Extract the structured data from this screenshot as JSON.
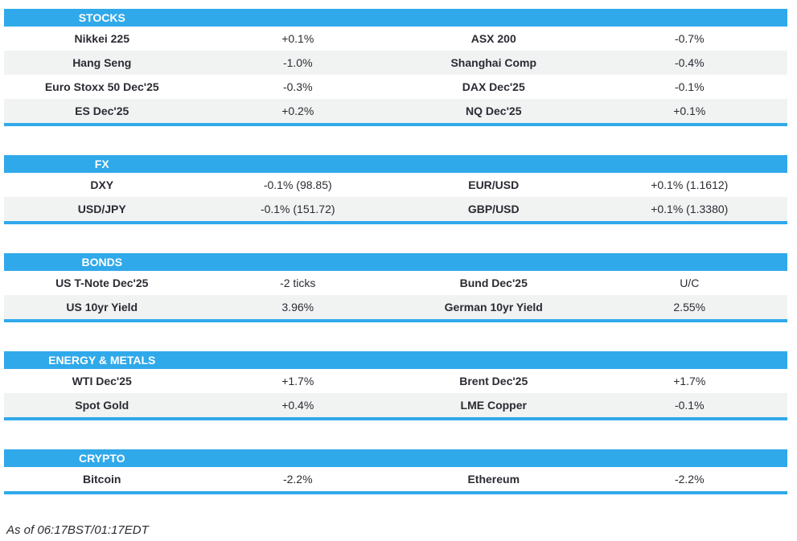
{
  "colors": {
    "accent_blue": "#30A9EA",
    "alt_row_gray": "#F1F2F2",
    "text_dark": "#2B2B33",
    "header_text": "#FFFFFF"
  },
  "sections": [
    {
      "title": "STOCKS",
      "rows": [
        [
          "Nikkei 225",
          "+0.1%",
          "ASX 200",
          "-0.7%"
        ],
        [
          "Hang Seng",
          "-1.0%",
          "Shanghai Comp",
          "-0.4%"
        ],
        [
          "Euro Stoxx 50 Dec'25",
          "-0.3%",
          "DAX Dec'25",
          "-0.1%"
        ],
        [
          "ES Dec'25",
          "+0.2%",
          "NQ Dec'25",
          "+0.1%"
        ]
      ]
    },
    {
      "title": "FX",
      "rows": [
        [
          "DXY",
          "-0.1% (98.85)",
          "EUR/USD",
          "+0.1% (1.1612)"
        ],
        [
          "USD/JPY",
          "-0.1% (151.72)",
          "GBP/USD",
          "+0.1% (1.3380)"
        ]
      ]
    },
    {
      "title": "BONDS",
      "rows": [
        [
          "US T-Note Dec'25",
          "-2 ticks",
          "Bund Dec'25",
          "U/C"
        ],
        [
          "US 10yr Yield",
          "3.96%",
          "German 10yr Yield",
          "2.55%"
        ]
      ]
    },
    {
      "title": "ENERGY & METALS",
      "rows": [
        [
          "WTI Dec'25",
          "+1.7%",
          "Brent Dec'25",
          "+1.7%"
        ],
        [
          "Spot Gold",
          "+0.4%",
          "LME Copper",
          "-0.1%"
        ]
      ]
    },
    {
      "title": "CRYPTO",
      "rows": [
        [
          "Bitcoin",
          "-2.2%",
          "Ethereum",
          "-2.2%"
        ]
      ]
    }
  ],
  "footer": {
    "as_of": "As of 06:17BST/01:17EDT"
  }
}
